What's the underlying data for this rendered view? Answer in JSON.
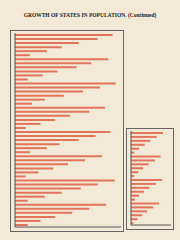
{
  "chart_data": [
    {
      "type": "bar",
      "title": "GROWTH OF STATES IN POPULATION. (Continued)",
      "orientation": "horizontal",
      "color": "#e2735c",
      "xlim": [
        0,
        100
      ],
      "xticks": [
        0,
        100
      ],
      "tick_labels": false,
      "categories": [
        null,
        null,
        null,
        null,
        null,
        null,
        null,
        null,
        null,
        null,
        null,
        null,
        null,
        null,
        null,
        null,
        null,
        null,
        null,
        null,
        null,
        null,
        null,
        null,
        null,
        null,
        null,
        null,
        null,
        null,
        null,
        null,
        null,
        null,
        null,
        null,
        null,
        null,
        null,
        null,
        null,
        null,
        null,
        null,
        null,
        null,
        null,
        null
      ],
      "values": [
        92,
        78,
        60,
        44,
        30,
        14,
        88,
        72,
        58,
        40,
        26,
        12,
        95,
        80,
        64,
        46,
        28,
        16,
        85,
        70,
        52,
        38,
        24,
        10,
        90,
        76,
        60,
        42,
        30,
        14,
        82,
        66,
        50,
        36,
        22,
        10,
        94,
        78,
        62,
        44,
        28,
        12,
        86,
        70,
        54,
        38,
        24,
        12
      ]
    },
    {
      "type": "bar",
      "orientation": "horizontal",
      "color": "#e2735c",
      "xlim": [
        0,
        100
      ],
      "xticks": [
        0,
        100
      ],
      "tick_labels": false,
      "categories": [
        null,
        null,
        null,
        null,
        null,
        null,
        null,
        null,
        null,
        null,
        null,
        null,
        null,
        null,
        null,
        null,
        null,
        null,
        null,
        null,
        null,
        null,
        null,
        null
      ],
      "values": [
        80,
        64,
        48,
        34,
        20,
        8,
        74,
        60,
        44,
        30,
        18,
        8,
        78,
        62,
        46,
        32,
        20,
        10,
        70,
        56,
        40,
        28,
        16,
        6
      ]
    }
  ]
}
